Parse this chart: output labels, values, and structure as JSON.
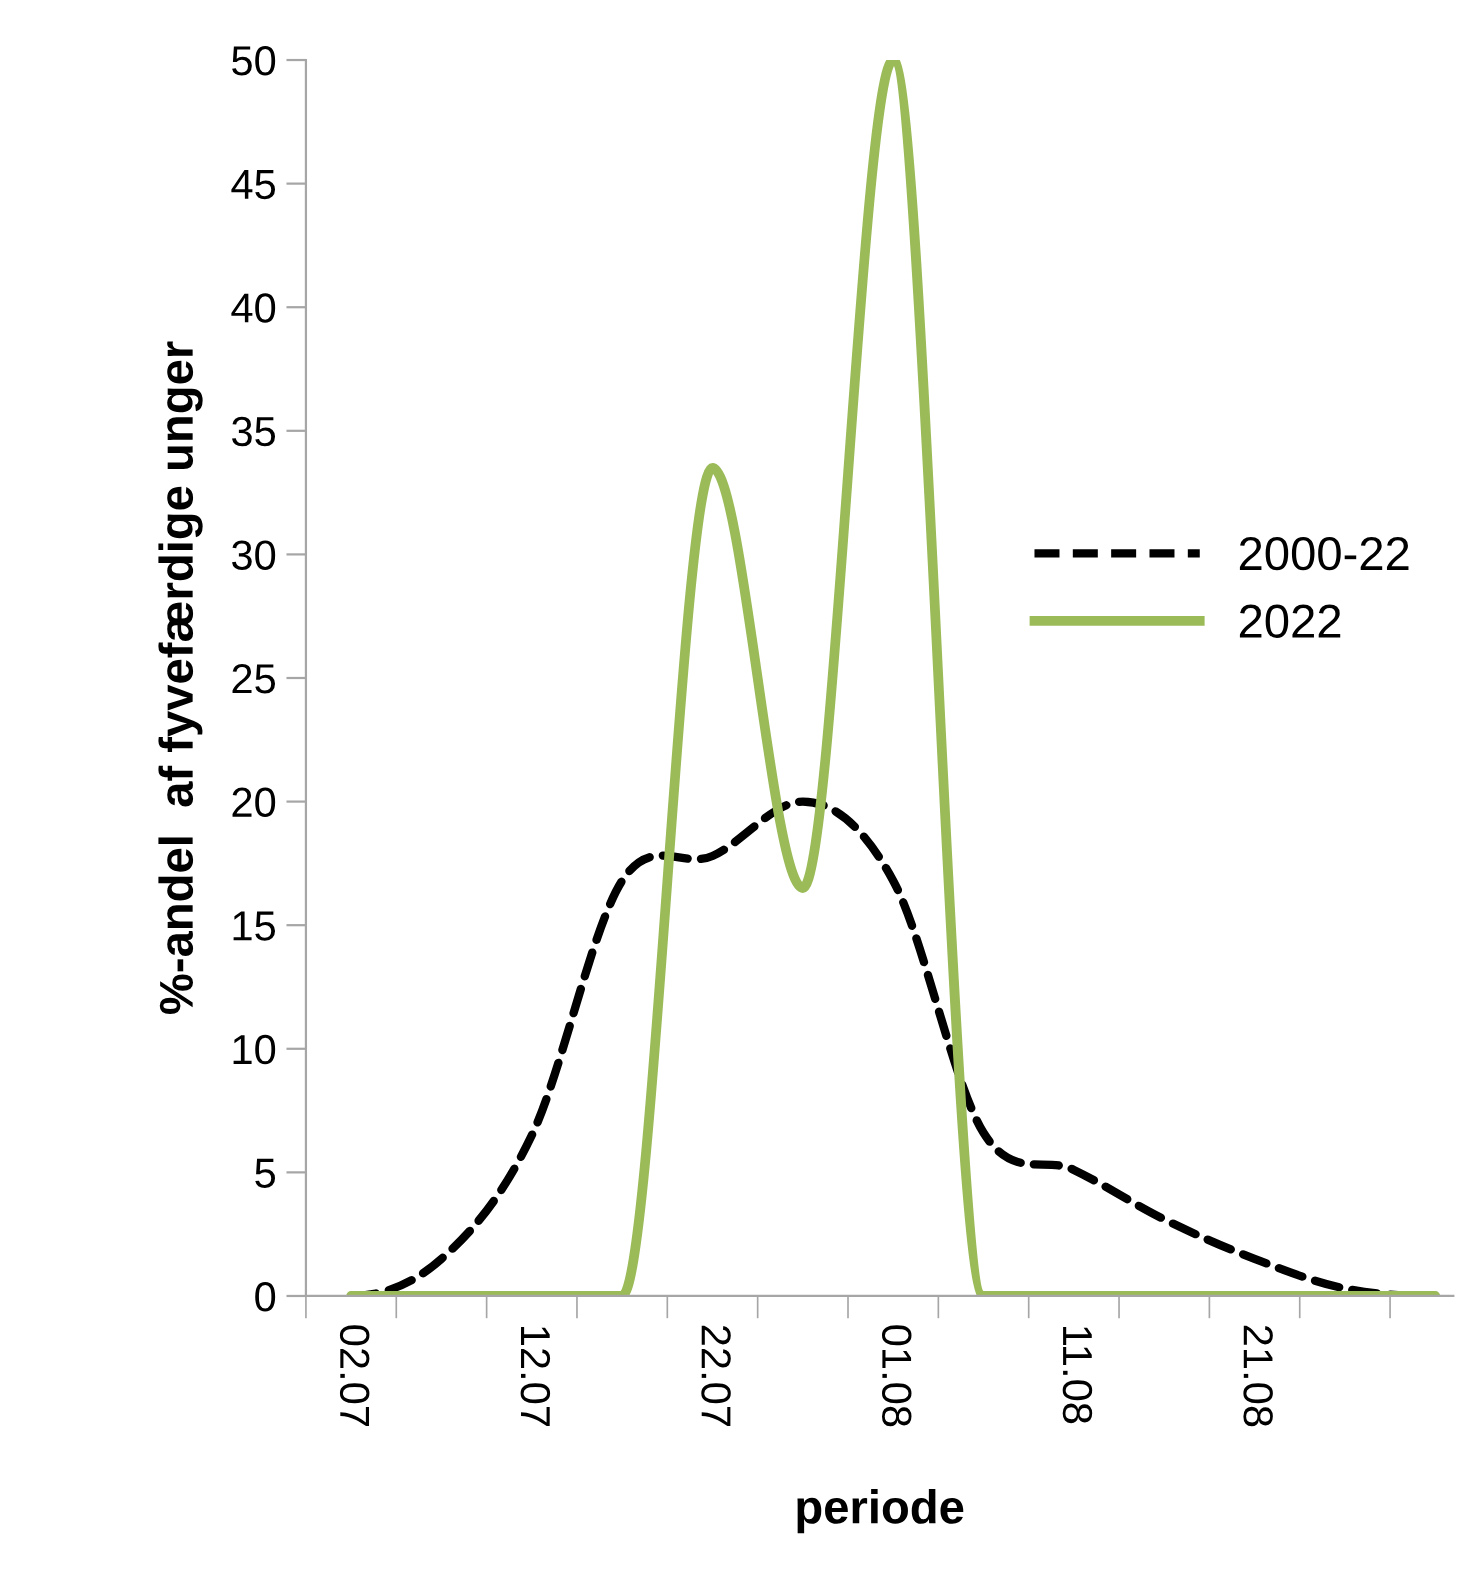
{
  "chart_data": {
    "type": "line",
    "xlabel": "periode",
    "ylabel": "%-andel  af fyvefærdige unger",
    "categories": [
      "02.07",
      null,
      "12.07",
      null,
      "22.07",
      null,
      "01.08",
      null,
      "11.08",
      null,
      "21.08",
      null,
      null
    ],
    "series": [
      {
        "name": "2000-22",
        "color": "#000000",
        "line_style": "dashed",
        "values": [
          0,
          1.5,
          6.5,
          16.8,
          17.8,
          20,
          16.8,
          6.6,
          5.1,
          3.1,
          1.5,
          0.3,
          0
        ]
      },
      {
        "name": "2022",
        "color": "#9bbb59",
        "line_style": "solid",
        "values": [
          0,
          0,
          0,
          0,
          33.5,
          16.5,
          50,
          0,
          0,
          0,
          0,
          0,
          0
        ]
      }
    ],
    "ylim": [
      0,
      50
    ],
    "yticks": [
      0,
      5,
      10,
      15,
      20,
      25,
      30,
      35,
      40,
      45,
      50
    ],
    "grid": false,
    "legend": "right",
    "marker": "none"
  }
}
